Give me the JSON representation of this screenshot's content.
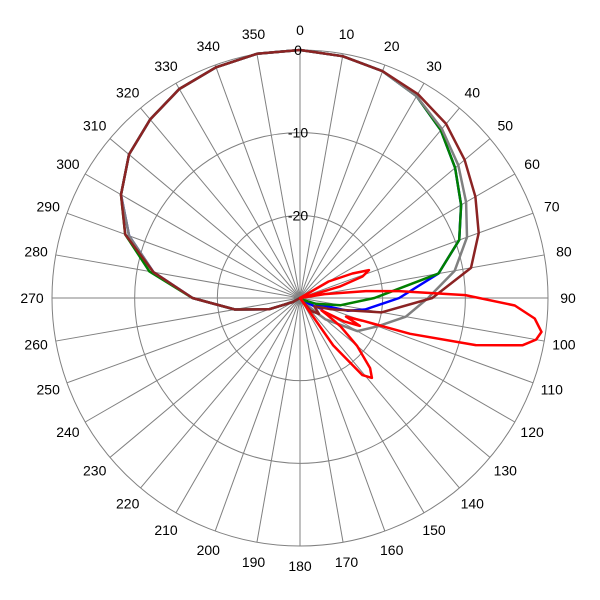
{
  "chart_data": {
    "type": "polar-line",
    "title": "",
    "angle_direction": "clockwise",
    "zero_at": "top",
    "angle_ticks": [
      0,
      10,
      20,
      30,
      40,
      50,
      60,
      70,
      80,
      90,
      100,
      110,
      120,
      130,
      140,
      150,
      160,
      170,
      180,
      190,
      200,
      210,
      220,
      230,
      240,
      250,
      260,
      270,
      280,
      290,
      300,
      310,
      320,
      330,
      340,
      350
    ],
    "radial_ticks": [
      0,
      -10,
      -20
    ],
    "radial_range": [
      -30,
      0
    ],
    "grid": true,
    "series": [
      {
        "color": "#0000ff",
        "points": [
          [
            0,
            0
          ],
          [
            10,
            -0.3
          ],
          [
            20,
            -0.8
          ],
          [
            30,
            -1.8
          ],
          [
            40,
            -3.5
          ],
          [
            50,
            -5.5
          ],
          [
            60,
            -7.5
          ],
          [
            70,
            -9.5
          ],
          [
            80,
            -13
          ],
          [
            90,
            -18
          ],
          [
            100,
            -22
          ],
          [
            105,
            -24
          ],
          [
            110,
            -28
          ],
          [
            115,
            -27
          ],
          [
            120,
            -28
          ],
          [
            130,
            -29.5
          ],
          [
            150,
            -30
          ],
          [
            180,
            -30
          ],
          [
            200,
            -30
          ],
          [
            220,
            -30
          ],
          [
            240,
            -29
          ],
          [
            250,
            -26
          ],
          [
            260,
            -22
          ],
          [
            270,
            -17
          ],
          [
            280,
            -12
          ],
          [
            290,
            -8
          ],
          [
            300,
            -5
          ],
          [
            310,
            -3
          ],
          [
            320,
            -1.8
          ],
          [
            330,
            -0.8
          ],
          [
            340,
            -0.3
          ],
          [
            350,
            0
          ],
          [
            360,
            0
          ]
        ]
      },
      {
        "color": "#008000",
        "points": [
          [
            0,
            0
          ],
          [
            10,
            -0.3
          ],
          [
            20,
            -0.8
          ],
          [
            30,
            -1.8
          ],
          [
            40,
            -3.5
          ],
          [
            50,
            -5.5
          ],
          [
            60,
            -7.5
          ],
          [
            70,
            -9.5
          ],
          [
            80,
            -13
          ],
          [
            90,
            -21
          ],
          [
            100,
            -25
          ],
          [
            110,
            -28
          ],
          [
            120,
            -29.5
          ],
          [
            130,
            -30
          ],
          [
            180,
            -30
          ],
          [
            220,
            -30
          ],
          [
            240,
            -29
          ],
          [
            250,
            -26
          ],
          [
            260,
            -22
          ],
          [
            270,
            -17
          ],
          [
            280,
            -11.5
          ],
          [
            290,
            -7.5
          ],
          [
            300,
            -5
          ],
          [
            310,
            -3
          ],
          [
            320,
            -1.8
          ],
          [
            330,
            -0.8
          ],
          [
            340,
            -0.3
          ],
          [
            350,
            0
          ],
          [
            360,
            0
          ]
        ]
      },
      {
        "color": "#808080",
        "points": [
          [
            0,
            0
          ],
          [
            10,
            -0.3
          ],
          [
            20,
            -0.8
          ],
          [
            30,
            -1.8
          ],
          [
            40,
            -3.3
          ],
          [
            50,
            -5
          ],
          [
            60,
            -6.8
          ],
          [
            70,
            -8.5
          ],
          [
            80,
            -11
          ],
          [
            90,
            -14.5
          ],
          [
            100,
            -17
          ],
          [
            110,
            -20
          ],
          [
            120,
            -22
          ],
          [
            130,
            -26
          ],
          [
            140,
            -29
          ],
          [
            150,
            -30
          ],
          [
            180,
            -30
          ],
          [
            220,
            -30
          ],
          [
            240,
            -29
          ],
          [
            250,
            -26
          ],
          [
            260,
            -22
          ],
          [
            270,
            -17
          ],
          [
            280,
            -12
          ],
          [
            290,
            -8
          ],
          [
            300,
            -5
          ],
          [
            310,
            -3
          ],
          [
            320,
            -1.8
          ],
          [
            330,
            -0.8
          ],
          [
            340,
            -0.3
          ],
          [
            350,
            0
          ],
          [
            360,
            0
          ]
        ]
      },
      {
        "color": "#8b2323",
        "points": [
          [
            0,
            0
          ],
          [
            10,
            -0.3
          ],
          [
            20,
            -0.8
          ],
          [
            30,
            -1.5
          ],
          [
            40,
            -2.5
          ],
          [
            50,
            -4
          ],
          [
            60,
            -5.5
          ],
          [
            70,
            -7
          ],
          [
            80,
            -9
          ],
          [
            90,
            -14
          ],
          [
            100,
            -20
          ],
          [
            110,
            -26
          ],
          [
            120,
            -28
          ],
          [
            130,
            -27
          ],
          [
            140,
            -28
          ],
          [
            150,
            -30
          ],
          [
            180,
            -30
          ],
          [
            220,
            -30
          ],
          [
            240,
            -29
          ],
          [
            250,
            -26
          ],
          [
            260,
            -22
          ],
          [
            270,
            -17
          ],
          [
            280,
            -12
          ],
          [
            290,
            -7.5
          ],
          [
            300,
            -5
          ],
          [
            310,
            -3
          ],
          [
            320,
            -1.8
          ],
          [
            330,
            -0.8
          ],
          [
            340,
            -0.3
          ],
          [
            350,
            0
          ],
          [
            360,
            0
          ]
        ]
      },
      {
        "color": "#ff0000",
        "points": [
          [
            50,
            -30
          ],
          [
            60,
            -26
          ],
          [
            65,
            -23
          ],
          [
            68,
            -21
          ],
          [
            71,
            -22
          ],
          [
            74,
            -25
          ],
          [
            77,
            -29
          ],
          [
            79,
            -30
          ],
          [
            81,
            -27
          ],
          [
            84,
            -22
          ],
          [
            86,
            -18
          ],
          [
            89,
            -10
          ],
          [
            92,
            -4
          ],
          [
            95,
            -1.5
          ],
          [
            98,
            -0.5
          ],
          [
            100,
            -1
          ],
          [
            102,
            -2.5
          ],
          [
            105,
            -8
          ],
          [
            108,
            -16
          ],
          [
            110,
            -22
          ],
          [
            112,
            -24
          ],
          [
            115,
            -22
          ],
          [
            118,
            -24
          ],
          [
            120,
            -27
          ],
          [
            122,
            -26
          ],
          [
            125,
            -24
          ],
          [
            130,
            -21
          ],
          [
            135,
            -18
          ],
          [
            138,
            -17
          ],
          [
            141,
            -18
          ],
          [
            145,
            -23
          ],
          [
            150,
            -30
          ],
          [
            360,
            -30
          ]
        ]
      }
    ]
  }
}
